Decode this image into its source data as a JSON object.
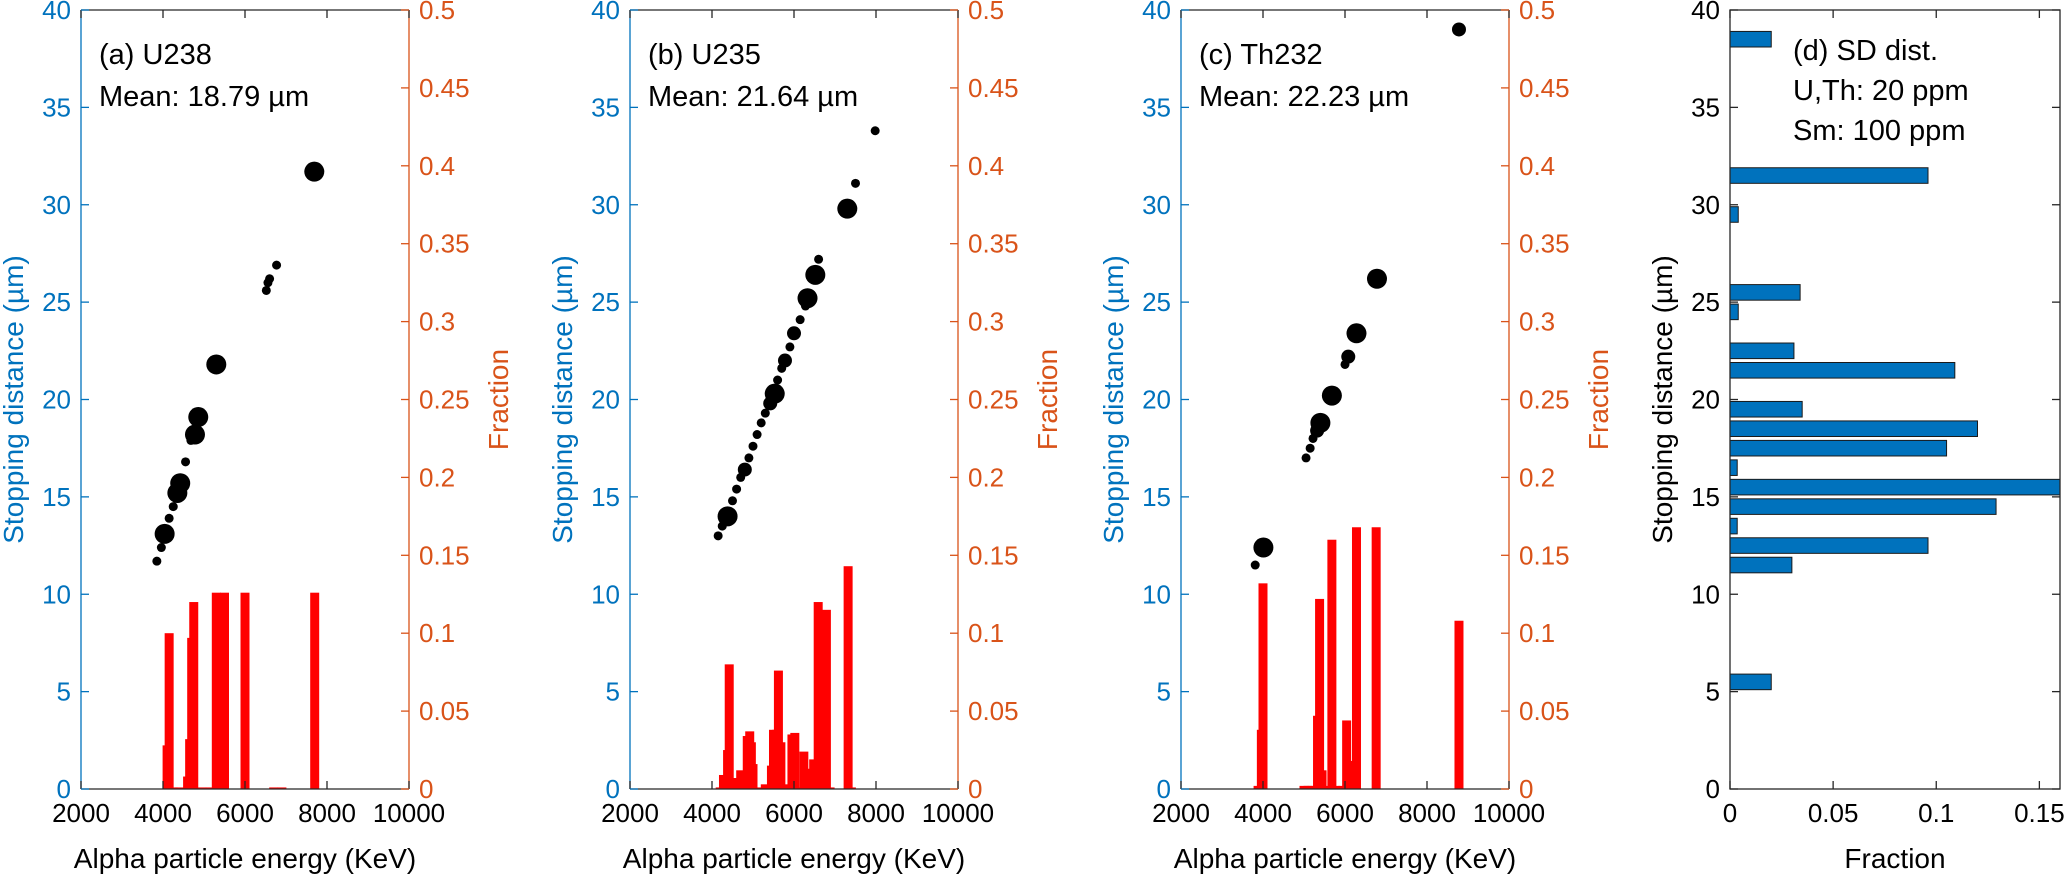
{
  "colors": {
    "left_axis": "#0072BD",
    "right_axis": "#D95319",
    "scatter": "#000000",
    "energy_bars": "#FF0000",
    "sd_bars": "#0072BD",
    "sd_bar_edge": "#1a1a1a",
    "frame": "#262626"
  },
  "chart_data": [
    {
      "id": "a",
      "type": "scatter+bar",
      "annotation": [
        "(a) U238",
        "Mean: 18.79 µm"
      ],
      "xlabel": "Alpha particle energy (KeV)",
      "ylabel": "Stopping distance (µm)",
      "ylabel_right": "Fraction",
      "xlim": [
        2000,
        10000
      ],
      "ylim": [
        0,
        40
      ],
      "ylim_right": [
        0,
        0.5
      ],
      "xticks": [
        "2000",
        "4000",
        "6000",
        "8000",
        "10000"
      ],
      "yticks": [
        "0",
        "5",
        "10",
        "15",
        "20",
        "25",
        "30",
        "35",
        "40"
      ],
      "yticks_right": [
        "0",
        "0.05",
        "0.1",
        "0.15",
        "0.2",
        "0.25",
        "0.3",
        "0.35",
        "0.4",
        "0.45",
        "0.5"
      ],
      "scatter": [
        {
          "x": 3850,
          "y": 11.7,
          "size": 1
        },
        {
          "x": 3960,
          "y": 12.4,
          "size": 1
        },
        {
          "x": 4040,
          "y": 13.1,
          "size": 3
        },
        {
          "x": 4150,
          "y": 13.9,
          "size": 1
        },
        {
          "x": 4250,
          "y": 14.5,
          "size": 1
        },
        {
          "x": 4350,
          "y": 15.2,
          "size": 3
        },
        {
          "x": 4420,
          "y": 15.7,
          "size": 3
        },
        {
          "x": 4550,
          "y": 16.8,
          "size": 1
        },
        {
          "x": 4680,
          "y": 17.9,
          "size": 1
        },
        {
          "x": 4780,
          "y": 18.2,
          "size": 3
        },
        {
          "x": 4860,
          "y": 19.1,
          "size": 3
        },
        {
          "x": 5300,
          "y": 21.8,
          "size": 3
        },
        {
          "x": 6520,
          "y": 25.6,
          "size": 1
        },
        {
          "x": 6560,
          "y": 26.0,
          "size": 1
        },
        {
          "x": 6600,
          "y": 26.2,
          "size": 1
        },
        {
          "x": 6770,
          "y": 26.9,
          "size": 1
        },
        {
          "x": 7690,
          "y": 31.7,
          "size": 3
        }
      ],
      "bars": [
        {
          "x": 4100,
          "y": 0.028
        },
        {
          "x": 4150,
          "y": 0.1
        },
        {
          "x": 4250,
          "y": 0.001
        },
        {
          "x": 4400,
          "y": 0.001
        },
        {
          "x": 4600,
          "y": 0.008
        },
        {
          "x": 4650,
          "y": 0.032
        },
        {
          "x": 4700,
          "y": 0.097
        },
        {
          "x": 4750,
          "y": 0.12
        },
        {
          "x": 4950,
          "y": 0.001
        },
        {
          "x": 5150,
          "y": 0.001
        },
        {
          "x": 5300,
          "y": 0.126
        },
        {
          "x": 5500,
          "y": 0.126
        },
        {
          "x": 6000,
          "y": 0.126
        },
        {
          "x": 6700,
          "y": 0.001
        },
        {
          "x": 6900,
          "y": 0.001
        },
        {
          "x": 7700,
          "y": 0.126
        }
      ]
    },
    {
      "id": "b",
      "type": "scatter+bar",
      "annotation": [
        "(b)  U235",
        "Mean: 21.64 µm"
      ],
      "xlabel": "Alpha particle energy (KeV)",
      "ylabel": "Stopping distance (µm)",
      "ylabel_right": "Fraction",
      "xlim": [
        2000,
        10000
      ],
      "ylim": [
        0,
        40
      ],
      "ylim_right": [
        0,
        0.5
      ],
      "xticks": [
        "2000",
        "4000",
        "6000",
        "8000",
        "10000"
      ],
      "yticks": [
        "0",
        "5",
        "10",
        "15",
        "20",
        "25",
        "30",
        "35",
        "40"
      ],
      "yticks_right": [
        "0",
        "0.05",
        "0.1",
        "0.15",
        "0.2",
        "0.25",
        "0.3",
        "0.35",
        "0.4",
        "0.45",
        "0.5"
      ],
      "scatter": [
        {
          "x": 4150,
          "y": 13.0,
          "size": 1
        },
        {
          "x": 4250,
          "y": 13.5,
          "size": 1
        },
        {
          "x": 4380,
          "y": 14.0,
          "size": 3
        },
        {
          "x": 4500,
          "y": 14.8,
          "size": 1
        },
        {
          "x": 4600,
          "y": 15.4,
          "size": 1
        },
        {
          "x": 4700,
          "y": 16.0,
          "size": 1
        },
        {
          "x": 4800,
          "y": 16.4,
          "size": 2
        },
        {
          "x": 4900,
          "y": 17.0,
          "size": 1
        },
        {
          "x": 5000,
          "y": 17.6,
          "size": 1
        },
        {
          "x": 5100,
          "y": 18.2,
          "size": 1
        },
        {
          "x": 5200,
          "y": 18.8,
          "size": 1
        },
        {
          "x": 5300,
          "y": 19.3,
          "size": 1
        },
        {
          "x": 5420,
          "y": 19.8,
          "size": 2
        },
        {
          "x": 5530,
          "y": 20.3,
          "size": 3
        },
        {
          "x": 5600,
          "y": 21.0,
          "size": 1
        },
        {
          "x": 5700,
          "y": 21.6,
          "size": 1
        },
        {
          "x": 5780,
          "y": 22.0,
          "size": 2
        },
        {
          "x": 5900,
          "y": 22.7,
          "size": 1
        },
        {
          "x": 6000,
          "y": 23.4,
          "size": 2
        },
        {
          "x": 6150,
          "y": 24.1,
          "size": 1
        },
        {
          "x": 6280,
          "y": 24.8,
          "size": 1
        },
        {
          "x": 6330,
          "y": 25.2,
          "size": 3
        },
        {
          "x": 6520,
          "y": 26.4,
          "size": 3
        },
        {
          "x": 6600,
          "y": 27.2,
          "size": 1
        },
        {
          "x": 7300,
          "y": 29.8,
          "size": 3
        },
        {
          "x": 7500,
          "y": 31.1,
          "size": 1
        },
        {
          "x": 7980,
          "y": 33.8,
          "size": 1
        }
      ],
      "bars": [
        {
          "x": 4200,
          "y": 0.001
        },
        {
          "x": 4280,
          "y": 0.009
        },
        {
          "x": 4380,
          "y": 0.025
        },
        {
          "x": 4420,
          "y": 0.08
        },
        {
          "x": 4500,
          "y": 0.004
        },
        {
          "x": 4560,
          "y": 0.007
        },
        {
          "x": 4620,
          "y": 0.007
        },
        {
          "x": 4700,
          "y": 0.012
        },
        {
          "x": 4780,
          "y": 0.004
        },
        {
          "x": 4860,
          "y": 0.034
        },
        {
          "x": 4920,
          "y": 0.037
        },
        {
          "x": 4960,
          "y": 0.03
        },
        {
          "x": 5000,
          "y": 0.016
        },
        {
          "x": 5100,
          "y": 0.001
        },
        {
          "x": 5300,
          "y": 0.003
        },
        {
          "x": 5450,
          "y": 0.015
        },
        {
          "x": 5500,
          "y": 0.038
        },
        {
          "x": 5580,
          "y": 0.038
        },
        {
          "x": 5620,
          "y": 0.076
        },
        {
          "x": 5680,
          "y": 0.03
        },
        {
          "x": 5750,
          "y": 0.003
        },
        {
          "x": 5950,
          "y": 0.035
        },
        {
          "x": 6020,
          "y": 0.036
        },
        {
          "x": 6080,
          "y": 0.001
        },
        {
          "x": 6240,
          "y": 0.024
        },
        {
          "x": 6380,
          "y": 0.013
        },
        {
          "x": 6480,
          "y": 0.019
        },
        {
          "x": 6590,
          "y": 0.12
        },
        {
          "x": 6790,
          "y": 0.115
        },
        {
          "x": 6880,
          "y": 0.001
        },
        {
          "x": 7320,
          "y": 0.143
        },
        {
          "x": 7400,
          "y": 0.001
        }
      ]
    },
    {
      "id": "c",
      "type": "scatter+bar",
      "annotation": [
        "(c)  Th232",
        "Mean: 22.23 µm"
      ],
      "xlabel": "Alpha particle energy (KeV)",
      "ylabel": "Stopping distance (µm)",
      "ylabel_right": "Fraction",
      "xlim": [
        2000,
        10000
      ],
      "ylim": [
        0,
        40
      ],
      "ylim_right": [
        0,
        0.5
      ],
      "xticks": [
        "2000",
        "4000",
        "6000",
        "8000",
        "10000"
      ],
      "yticks": [
        "0",
        "5",
        "10",
        "15",
        "20",
        "25",
        "30",
        "35",
        "40"
      ],
      "yticks_right": [
        "0",
        "0.05",
        "0.1",
        "0.15",
        "0.2",
        "0.25",
        "0.3",
        "0.35",
        "0.4",
        "0.45",
        "0.5"
      ],
      "scatter": [
        {
          "x": 3810,
          "y": 11.5,
          "size": 1
        },
        {
          "x": 4010,
          "y": 12.4,
          "size": 3
        },
        {
          "x": 5050,
          "y": 17.0,
          "size": 1
        },
        {
          "x": 5150,
          "y": 17.5,
          "size": 1
        },
        {
          "x": 5220,
          "y": 18.0,
          "size": 1
        },
        {
          "x": 5320,
          "y": 18.4,
          "size": 2
        },
        {
          "x": 5400,
          "y": 18.8,
          "size": 3
        },
        {
          "x": 5680,
          "y": 20.2,
          "size": 3
        },
        {
          "x": 6000,
          "y": 21.8,
          "size": 1
        },
        {
          "x": 6080,
          "y": 22.2,
          "size": 2
        },
        {
          "x": 6280,
          "y": 23.4,
          "size": 3
        },
        {
          "x": 6780,
          "y": 26.2,
          "size": 3
        },
        {
          "x": 8780,
          "y": 39.0,
          "size": 2
        }
      ],
      "bars": [
        {
          "x": 3880,
          "y": 0.002
        },
        {
          "x": 3960,
          "y": 0.038
        },
        {
          "x": 4000,
          "y": 0.132
        },
        {
          "x": 5000,
          "y": 0.002
        },
        {
          "x": 5100,
          "y": 0.002
        },
        {
          "x": 5200,
          "y": 0.002
        },
        {
          "x": 5330,
          "y": 0.047
        },
        {
          "x": 5380,
          "y": 0.122
        },
        {
          "x": 5440,
          "y": 0.012
        },
        {
          "x": 5550,
          "y": 0.002
        },
        {
          "x": 5680,
          "y": 0.16
        },
        {
          "x": 5760,
          "y": 0.002
        },
        {
          "x": 5950,
          "y": 0.002
        },
        {
          "x": 6040,
          "y": 0.044
        },
        {
          "x": 6100,
          "y": 0.018
        },
        {
          "x": 6280,
          "y": 0.168
        },
        {
          "x": 6760,
          "y": 0.168
        },
        {
          "x": 8780,
          "y": 0.108
        }
      ]
    },
    {
      "id": "d",
      "type": "bar",
      "orientation": "horizontal",
      "annotation": [
        "(d)  SD dist.",
        "U,Th: 20 ppm",
        "Sm: 100 ppm"
      ],
      "xlabel": "Fraction",
      "ylabel": "Stopping distance (µm)",
      "xlim": [
        0,
        0.16
      ],
      "ylim": [
        0,
        40
      ],
      "xticks": [
        "0",
        "0.05",
        "0.1",
        "0.15"
      ],
      "xtick_values": [
        0,
        0.05,
        0.1,
        0.15
      ],
      "yticks": [
        "0",
        "5",
        "10",
        "15",
        "20",
        "25",
        "30",
        "35",
        "40"
      ],
      "bin_width": 1,
      "categories": [
        38.5,
        31.5,
        29.5,
        25.5,
        24.5,
        22.5,
        21.5,
        19.5,
        18.5,
        17.5,
        16.5,
        15.5,
        14.5,
        13.5,
        12.5,
        11.5,
        5.5
      ],
      "values": [
        0.02,
        0.096,
        0.004,
        0.034,
        0.004,
        0.031,
        0.109,
        0.035,
        0.12,
        0.105,
        0.0035,
        0.16,
        0.129,
        0.0035,
        0.096,
        0.03,
        0.02
      ]
    }
  ]
}
